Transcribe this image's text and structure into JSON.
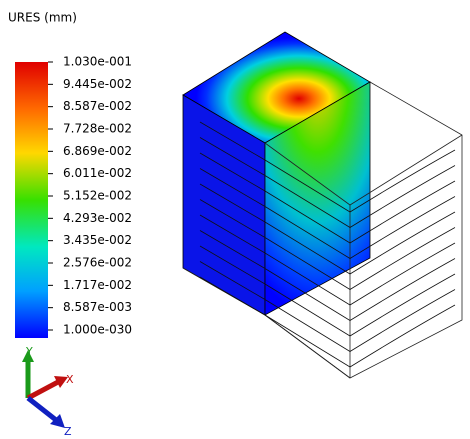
{
  "legend": {
    "title": "URES (mm)",
    "labels": [
      "1.030e-001",
      "9.445e-002",
      "8.587e-002",
      "7.728e-002",
      "6.869e-002",
      "6.011e-002",
      "5.152e-002",
      "4.293e-002",
      "3.435e-002",
      "2.576e-002",
      "1.717e-002",
      "8.587e-003",
      "1.000e-030"
    ]
  },
  "triad": {
    "x": "X",
    "y": "Y",
    "z": "Z"
  }
}
